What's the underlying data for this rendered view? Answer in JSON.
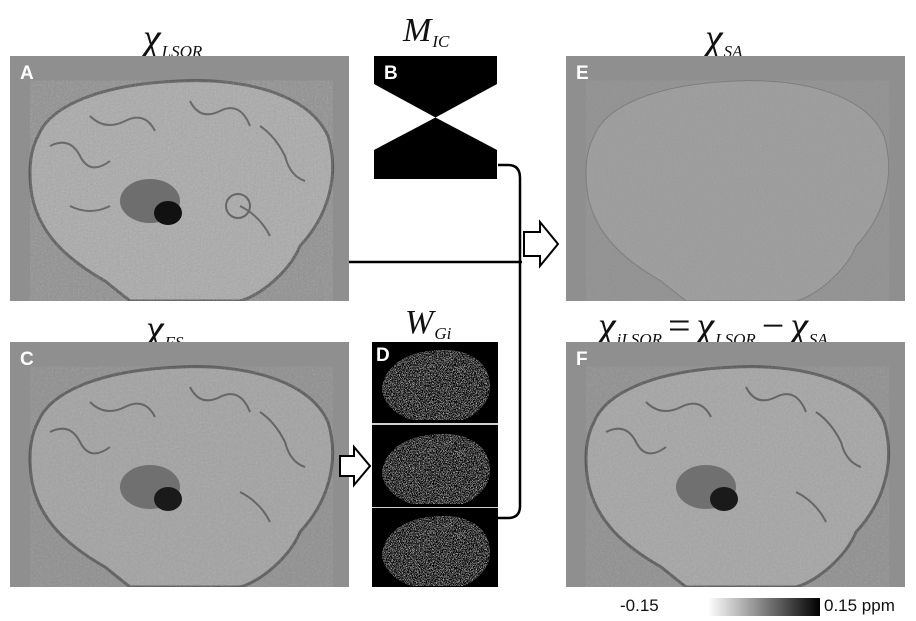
{
  "labels": {
    "chi": "χ",
    "lsqr_sub": "LSQR",
    "m": "M",
    "ic_sub": "IC",
    "sa_sub": "SA",
    "fs_sub": "FS",
    "w": "W",
    "gi_sub": "Gi",
    "ilsqr_sub": "iLSQR",
    "equals": "=",
    "minus": "−"
  },
  "panels": {
    "A": "A",
    "B": "B",
    "C": "C",
    "D": "D",
    "E": "E",
    "F": "F"
  },
  "colorbar": {
    "min": "-0.15",
    "max": "0.15 ppm"
  }
}
